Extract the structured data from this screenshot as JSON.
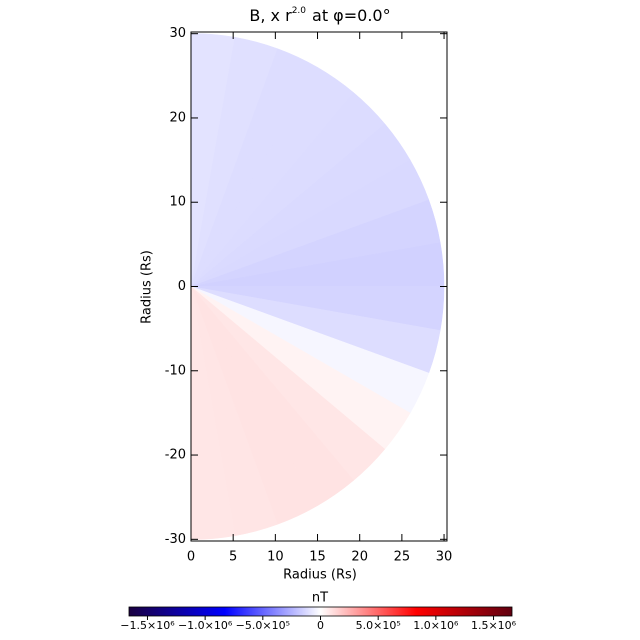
{
  "chart_data": {
    "type": "polar-field",
    "title_main": "B, x r",
    "title_sup": "2.0",
    "title_rest": "at φ=0.0°",
    "x_label": "Radius (Rs)",
    "y_label": "Radius (Rs)",
    "xlim": [
      0,
      30.35
    ],
    "ylim": [
      -30.2,
      30.2
    ],
    "xticks": [
      0,
      5,
      10,
      15,
      20,
      25,
      30
    ],
    "yticks": [
      -30,
      -20,
      -10,
      0,
      10,
      20,
      30
    ],
    "radius": 30,
    "angle_edges": [
      90,
      80,
      70,
      60,
      50,
      40,
      30,
      20,
      10,
      0,
      -10,
      -20,
      -30,
      -40,
      -50,
      -60,
      -70,
      -80,
      -90
    ],
    "values": [
      -90000,
      -100000,
      -110000,
      -110000,
      -115000,
      -120000,
      -125000,
      -140000,
      -150000,
      -140000,
      -110000,
      -30000,
      40000,
      80000,
      90000,
      90000,
      85000,
      80000
    ],
    "colorbar_label": "nT",
    "clim": [
      -1660000,
      1660000
    ],
    "cticks": [
      {
        "value": -1500000,
        "label": "−1.5×10⁶"
      },
      {
        "value": -1000000,
        "label": "−1.0×10⁶"
      },
      {
        "value": -500000,
        "label": "−5.0×10⁵"
      },
      0,
      {
        "value": 500000,
        "label": "5.0×10⁵"
      },
      {
        "value": 1000000,
        "label": "1.0×10⁶"
      },
      {
        "value": 1500000,
        "label": "1.5×10⁶"
      }
    ]
  }
}
